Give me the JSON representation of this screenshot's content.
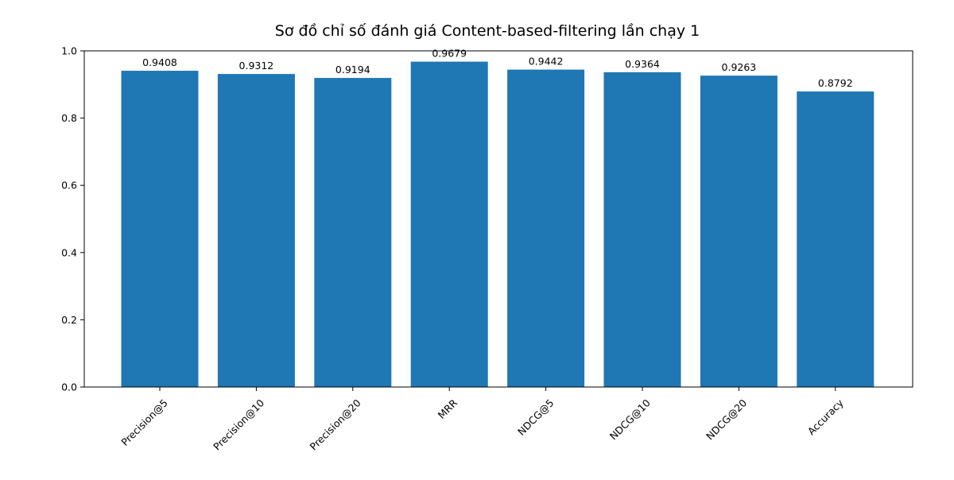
{
  "chart_data": {
    "type": "bar",
    "title": "Sơ đồ chỉ số đánh giá Content-based-filtering lần chạy 1",
    "xlabel": "",
    "ylabel": "",
    "categories": [
      "Precision@5",
      "Precision@10",
      "Precision@20",
      "MRR",
      "NDCG@5",
      "NDCG@10",
      "NDCG@20",
      "Accuracy"
    ],
    "values": [
      0.9408,
      0.9312,
      0.9194,
      0.9679,
      0.9442,
      0.9364,
      0.9263,
      0.8792
    ],
    "value_labels": [
      "0.9408",
      "0.9312",
      "0.9194",
      "0.9679",
      "0.9442",
      "0.9364",
      "0.9263",
      "0.8792"
    ],
    "ylim": [
      0,
      1.0
    ],
    "yticks": [
      "0.0",
      "0.2",
      "0.4",
      "0.6",
      "0.8",
      "1.0"
    ],
    "ytick_values": [
      0.0,
      0.2,
      0.4,
      0.6,
      0.8,
      1.0
    ],
    "grid": false,
    "bar_color": "#1f77b4",
    "axis_color": "#000000"
  }
}
